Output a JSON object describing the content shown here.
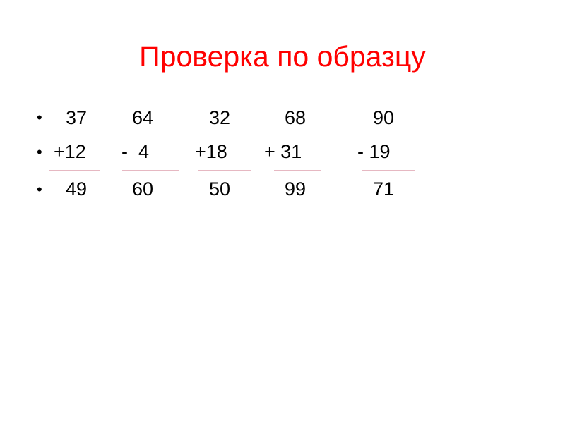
{
  "title": "Проверка по образцу",
  "rows": [
    [
      "37",
      "64",
      "32",
      "68",
      "90"
    ],
    [
      "+12",
      "-  4",
      "+18",
      "+ 31",
      "- 19"
    ],
    [
      "49",
      "60",
      "50",
      "99",
      "71"
    ]
  ],
  "colors": {
    "title": "#ff0000",
    "rule": "#e6b8c2",
    "text": "#000000"
  }
}
